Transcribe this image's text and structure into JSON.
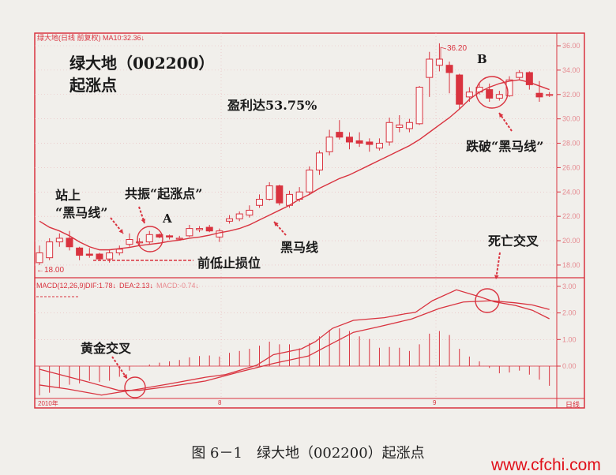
{
  "header": {
    "legend": "绿大地(日线 前复权) MA10:32.36↓",
    "title_line1": "绿大地（002200）",
    "title_line2": "起涨点"
  },
  "annotations": {
    "profit": "盈利达53.75%",
    "stand_on_1": "站上",
    "stand_on_2": "“黑马线”",
    "resonance": "共振“起涨点”",
    "point_a": "A",
    "point_b": "B",
    "stop_loss": "前低止损位",
    "dark_horse_line": "黑马线",
    "break_below": "跌破“黑马线”",
    "death_cross": "死亡交叉",
    "golden_cross": "黄金交叉",
    "high_label": "36.20",
    "low_label": "←18.00"
  },
  "macd_legend": {
    "name": "MACD(12,26,9)",
    "dif": "DIF:1.78↓",
    "dea": "DEA:2.13↓",
    "macd": "MACD:-0.74↓"
  },
  "date_axis": [
    "2010年",
    "8",
    "9"
  ],
  "period_label": "日线",
  "caption": "图 6－1　绿大地（002200）起涨点",
  "watermark": "www.cfchi.com",
  "colors": {
    "accent": "#d9333f",
    "paper": "#f1efeb",
    "text": "#1a1a1a"
  },
  "chart_data": [
    {
      "type": "candlestick",
      "title": "",
      "y_ticks": [
        "36.00",
        "34.00",
        "32.00",
        "30.00",
        "28.00",
        "26.00",
        "24.00",
        "22.00",
        "20.00",
        "18.00"
      ],
      "ylim": [
        18,
        36
      ],
      "grid": true,
      "ohlc": [
        [
          18.2,
          19.0,
          19.6,
          18.0
        ],
        [
          18.6,
          19.9,
          20.2,
          18.4
        ],
        [
          19.9,
          20.2,
          20.6,
          19.5
        ],
        [
          20.2,
          19.5,
          20.8,
          19.2
        ],
        [
          19.4,
          18.8,
          19.5,
          18.4
        ],
        [
          18.9,
          18.8,
          19.4,
          18.6
        ],
        [
          18.9,
          18.5,
          19.0,
          18.4
        ],
        [
          18.5,
          19.0,
          19.3,
          18.2
        ],
        [
          19.0,
          19.3,
          19.6,
          18.8
        ],
        [
          19.7,
          20.1,
          20.6,
          19.5
        ],
        [
          19.9,
          19.9,
          20.2,
          19.6
        ],
        [
          19.9,
          20.5,
          20.8,
          19.7
        ],
        [
          20.5,
          20.3,
          20.6,
          20.2
        ],
        [
          20.4,
          20.3,
          20.5,
          20.1
        ],
        [
          20.2,
          20.2,
          20.4,
          20.0
        ],
        [
          20.4,
          21.0,
          21.3,
          20.3
        ],
        [
          20.9,
          21.0,
          21.2,
          20.7
        ],
        [
          21.1,
          20.8,
          21.3,
          20.7
        ],
        [
          20.3,
          20.8,
          21.0,
          19.9
        ],
        [
          21.6,
          21.8,
          22.1,
          21.4
        ],
        [
          21.8,
          22.2,
          22.4,
          21.6
        ],
        [
          22.1,
          22.5,
          22.9,
          21.9
        ],
        [
          22.9,
          23.4,
          23.8,
          22.7
        ],
        [
          23.4,
          24.5,
          24.8,
          23.3
        ],
        [
          24.5,
          23.1,
          24.6,
          22.9
        ],
        [
          22.9,
          23.8,
          24.1,
          22.7
        ],
        [
          23.4,
          24.0,
          24.4,
          23.2
        ],
        [
          24.0,
          25.8,
          26.1,
          23.8
        ],
        [
          25.8,
          27.2,
          27.4,
          25.4
        ],
        [
          27.3,
          28.5,
          29.1,
          27.0
        ],
        [
          28.9,
          28.5,
          29.9,
          28.3
        ],
        [
          28.5,
          28.1,
          28.9,
          27.5
        ],
        [
          28.2,
          28.0,
          28.9,
          27.7
        ],
        [
          28.1,
          27.9,
          28.4,
          27.3
        ],
        [
          27.6,
          28.0,
          28.4,
          27.4
        ],
        [
          28.1,
          29.7,
          30.1,
          27.8
        ],
        [
          29.3,
          29.5,
          30.3,
          28.9
        ],
        [
          29.2,
          29.7,
          30.0,
          28.9
        ],
        [
          29.6,
          32.6,
          32.7,
          29.5
        ],
        [
          33.4,
          34.9,
          35.5,
          31.8
        ],
        [
          34.4,
          34.9,
          36.2,
          33.9
        ],
        [
          34.4,
          33.8,
          34.7,
          32.1
        ],
        [
          33.6,
          31.2,
          33.7,
          30.8
        ],
        [
          31.8,
          32.2,
          32.6,
          31.4
        ],
        [
          32.2,
          32.6,
          32.9,
          32.0
        ],
        [
          32.4,
          31.7,
          32.9,
          31.4
        ],
        [
          31.7,
          32.0,
          32.3,
          31.5
        ],
        [
          31.9,
          33.2,
          33.5,
          31.8
        ],
        [
          33.4,
          33.8,
          34.0,
          33.2
        ],
        [
          33.8,
          32.8,
          33.9,
          32.4
        ],
        [
          32.1,
          31.8,
          33.1,
          31.4
        ],
        [
          32.0,
          32.0,
          32.2,
          31.8
        ]
      ],
      "ma10": [
        21.6,
        21.1,
        20.8,
        20.4,
        19.9,
        19.5,
        19.25,
        19.25,
        19.35,
        19.45,
        19.6,
        19.7,
        19.8,
        19.95,
        20.05,
        20.2,
        20.3,
        20.45,
        20.65,
        20.8,
        21.0,
        21.3,
        21.7,
        22.1,
        22.5,
        22.9,
        23.4,
        23.8,
        24.3,
        24.7,
        25.1,
        25.4,
        25.8,
        26.2,
        26.6,
        27.0,
        27.4,
        27.8,
        28.3,
        28.9,
        29.5,
        30.1,
        30.8,
        31.6,
        32.2,
        32.6,
        32.9,
        33.1,
        33.2,
        33.0,
        32.7,
        32.4
      ],
      "high": 36.2,
      "low": 18.0
    },
    {
      "type": "bar+line",
      "title": "MACD(12,26,9)",
      "y_ticks": [
        "3.00",
        "2.00",
        "1.00",
        "0.00"
      ],
      "ylim": [
        -1.3,
        3.2
      ],
      "macd": [
        -1.1,
        -1.0,
        -0.8,
        -0.7,
        -0.65,
        -0.55,
        -0.6,
        -0.55,
        -0.4,
        -0.17,
        0.0,
        0.06,
        0.13,
        0.18,
        0.23,
        0.33,
        0.38,
        0.4,
        0.36,
        0.5,
        0.57,
        0.65,
        0.77,
        0.92,
        0.82,
        0.82,
        0.67,
        0.87,
        1.12,
        1.37,
        1.42,
        1.32,
        1.12,
        1.02,
        0.69,
        0.72,
        0.69,
        0.57,
        0.82,
        1.22,
        1.32,
        1.17,
        0.65,
        0.36,
        0.18,
        -0.07,
        -0.27,
        -0.24,
        -0.17,
        -0.32,
        -0.51,
        -0.74
      ],
      "dif": [
        [
          0,
          -0.71
        ],
        [
          2.8,
          -0.86
        ],
        [
          6.2,
          -1.09
        ],
        [
          8.3,
          -0.96
        ],
        [
          10,
          -0.86
        ],
        [
          13.1,
          -0.66
        ],
        [
          16.6,
          -0.42
        ],
        [
          18.6,
          -0.32
        ],
        [
          21.7,
          0.03
        ],
        [
          23.4,
          0.43
        ],
        [
          26.2,
          0.65
        ],
        [
          27.6,
          0.92
        ],
        [
          29.3,
          1.42
        ],
        [
          31.4,
          1.72
        ],
        [
          34.5,
          1.82
        ],
        [
          36.6,
          1.97
        ],
        [
          37.6,
          2.02
        ],
        [
          39.3,
          2.46
        ],
        [
          41.7,
          2.87
        ],
        [
          44.1,
          2.6
        ],
        [
          45.5,
          2.42
        ],
        [
          47.6,
          2.28
        ],
        [
          49.3,
          2.1
        ],
        [
          51,
          1.78
        ]
      ],
      "dea": [
        [
          0,
          -0.12
        ],
        [
          4.5,
          -0.56
        ],
        [
          7.9,
          -0.91
        ],
        [
          10,
          -0.91
        ],
        [
          13.1,
          -0.76
        ],
        [
          16.6,
          -0.56
        ],
        [
          20,
          -0.22
        ],
        [
          23.4,
          0.1
        ],
        [
          26.9,
          0.38
        ],
        [
          28.6,
          0.72
        ],
        [
          31.4,
          1.27
        ],
        [
          33.8,
          1.47
        ],
        [
          37.2,
          1.77
        ],
        [
          40,
          2.17
        ],
        [
          42.4,
          2.41
        ],
        [
          45.2,
          2.46
        ],
        [
          47.6,
          2.38
        ],
        [
          49.3,
          2.3
        ],
        [
          51,
          2.13
        ]
      ]
    }
  ]
}
